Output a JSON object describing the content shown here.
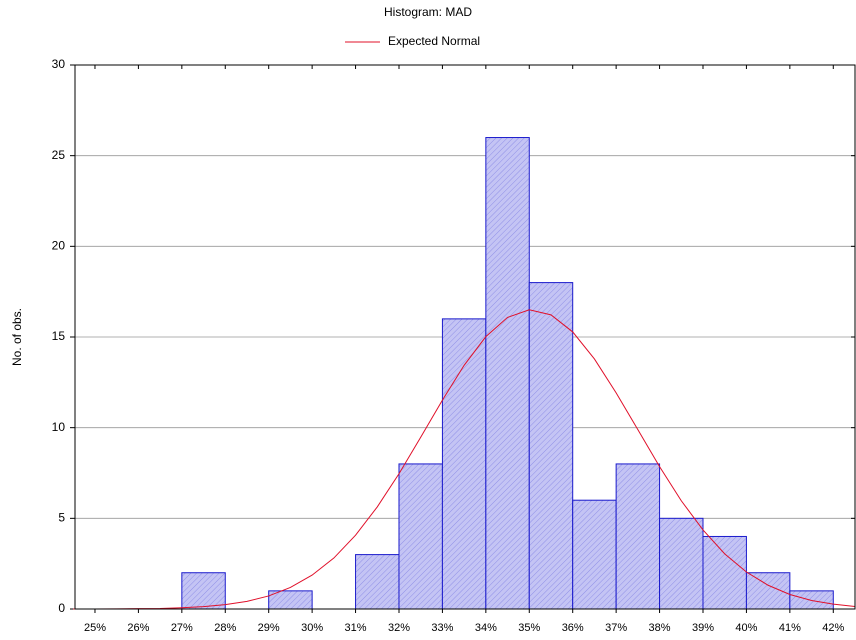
{
  "chart_data": {
    "type": "histogram",
    "title": "Histogram: MAD",
    "y_label": "No. of obs.",
    "bins": [
      25,
      26,
      27,
      28,
      29,
      30,
      31,
      32,
      33,
      34,
      35,
      36,
      37,
      38,
      39,
      40,
      41,
      42
    ],
    "values": [
      0,
      0,
      2,
      0,
      1,
      0,
      3,
      8,
      16,
      26,
      18,
      6,
      8,
      5,
      4,
      2,
      1
    ],
    "bar_edge_color": "#1a1acc",
    "bar_fill_color": "#c4c4f4",
    "curve": {
      "name": "Expected Normal",
      "color": "#e0102a",
      "x": [
        24.5,
        25,
        25.5,
        26,
        26.5,
        27,
        27.5,
        28,
        28.5,
        29,
        29.5,
        30,
        30.5,
        31,
        31.5,
        32,
        32.5,
        33,
        33.5,
        34,
        34.5,
        35,
        35.5,
        36,
        36.5,
        37,
        37.5,
        38,
        38.5,
        39,
        39.5,
        40,
        40.5,
        41,
        41.5,
        42,
        42.5
      ],
      "values": [
        0,
        0,
        0.01,
        0.02,
        0.03,
        0.07,
        0.13,
        0.24,
        0.42,
        0.72,
        1.19,
        1.87,
        2.81,
        4.07,
        5.63,
        7.46,
        9.47,
        11.52,
        13.44,
        15.02,
        16.08,
        16.5,
        16.22,
        15.28,
        13.79,
        11.92,
        9.89,
        7.85,
        5.97,
        4.36,
        3.04,
        2.04,
        1.31,
        0.8,
        0.47,
        0.27,
        0.14
      ]
    },
    "xlim": [
      24.54,
      42.5
    ],
    "ylim": [
      0,
      30
    ],
    "xticks": [
      {
        "value": 25,
        "label": "25%"
      },
      {
        "value": 26,
        "label": "26%"
      },
      {
        "value": 27,
        "label": "27%"
      },
      {
        "value": 28,
        "label": "28%"
      },
      {
        "value": 29,
        "label": "29%"
      },
      {
        "value": 30,
        "label": "30%"
      },
      {
        "value": 31,
        "label": "31%"
      },
      {
        "value": 32,
        "label": "32%"
      },
      {
        "value": 33,
        "label": "33%"
      },
      {
        "value": 34,
        "label": "34%"
      },
      {
        "value": 35,
        "label": "35%"
      },
      {
        "value": 36,
        "label": "36%"
      },
      {
        "value": 37,
        "label": "37%"
      },
      {
        "value": 38,
        "label": "38%"
      },
      {
        "value": 39,
        "label": "39%"
      },
      {
        "value": 40,
        "label": "40%"
      },
      {
        "value": 41,
        "label": "41%"
      },
      {
        "value": 42,
        "label": "42%"
      }
    ],
    "yticks": [
      0,
      5,
      10,
      15,
      20,
      25,
      30
    ],
    "grid": true,
    "legend_position": "top"
  }
}
